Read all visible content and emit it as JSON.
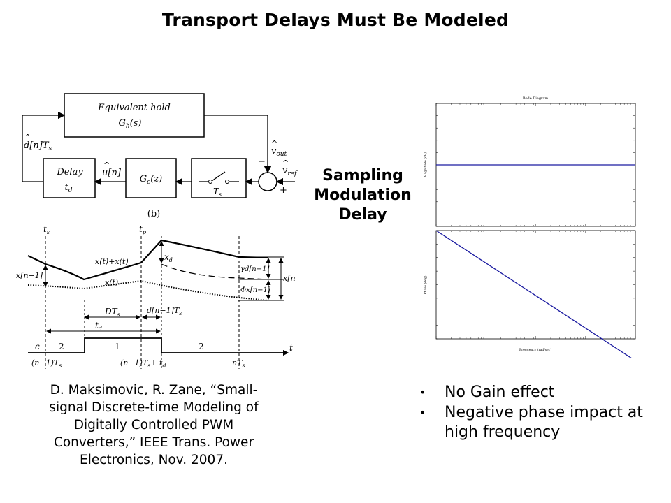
{
  "slide": {
    "title": "Transport Delays Must Be Modeled",
    "center_label": [
      "Sampling",
      "Modulation",
      "Delay"
    ],
    "citation": [
      "D. Maksimovic, R. Zane, “Small-",
      "signal Discrete-time Modeling of",
      "Digitally Controlled PWM",
      "Converters,” IEEE Trans. Power",
      "Electronics, Nov. 2007."
    ],
    "bullets": [
      "No Gain effect",
      "Negative phase impact at high frequency"
    ]
  },
  "block_diagram": {
    "equivalent_hold": "Equivalent hold",
    "hold_tf": "G",
    "hold_tf_sub": "h",
    "hold_tf_arg": "(s)",
    "delay_label": "Delay",
    "delay_t": "t",
    "delay_t_sub": "d",
    "gc": "G",
    "gc_sub": "c",
    "gc_arg": "(z)",
    "switch_T": "T",
    "switch_T_sub": "s",
    "feedback_label": "d[n]T",
    "feedback_sub": "s",
    "u_label": "u[n]",
    "vout": "v",
    "vout_sub": "out",
    "vref": "v",
    "vref_sub": "ref",
    "minus": "−",
    "plus": "+",
    "caption": "(b)"
  },
  "timing": {
    "ts": "t",
    "ts_sub": "s",
    "tp": "t",
    "tp_sub": "p",
    "x_plus_xhat": "x(t)+x(t)",
    "xt": "x(t)",
    "xd": "x",
    "xd_sub": "d",
    "xhat_n1": "x[n−1]",
    "gamma_d": "γd[n−1]",
    "phi_x": "Φx[n−1]",
    "xhat_n": "x[n]",
    "DTs": "DT",
    "DTs_sub": "s",
    "d_n1_Ts": "d[n−1]T",
    "d_n1_Ts_sub": "s",
    "td": "t",
    "td_sub": "d",
    "c": "c",
    "seg2a": "2",
    "seg1": "1",
    "seg2b": "2",
    "t_axis": "t",
    "n1Ts": "(n−1)T",
    "n1Ts_sub": "s",
    "n1Ts_td": "(n−1)T",
    "n1Ts_td_mid": "s",
    "n1Ts_td_end": "+ t",
    "n1Ts_td_endsub": "d",
    "nTs": "nT",
    "nTs_sub": "s"
  },
  "bode": {
    "title": "Bode Diagram",
    "mag_ylabel": "Magnitude (dB)",
    "phase_ylabel": "Phase (deg)",
    "xlabel": "Frequency (rad/sec)",
    "line_color": "#1a1aa0"
  },
  "chart_data": {
    "type": "line",
    "title": "Bode Diagram",
    "xlabel": "Frequency (rad/sec)",
    "ylabel": "Magnitude (dB) / Phase (deg)",
    "x_scale": "log",
    "series": [
      {
        "name": "Magnitude (dB)",
        "x": [
          1,
          10000
        ],
        "y": [
          0,
          0
        ]
      },
      {
        "name": "Phase (deg)",
        "x": [
          1,
          10000
        ],
        "y": [
          0,
          -360
        ]
      }
    ]
  }
}
